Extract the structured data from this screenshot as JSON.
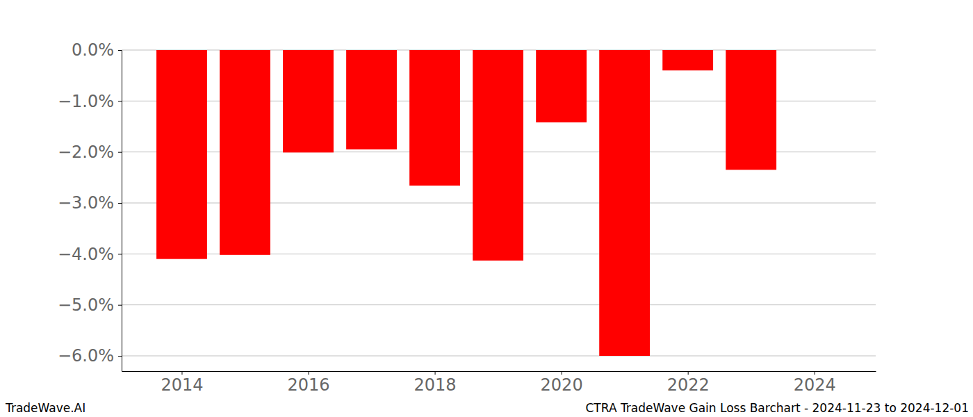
{
  "chart_data": {
    "type": "bar",
    "title": "CTRA TradeWave Gain Loss Barchart - 2024-11-23 to 2024-12-01",
    "annotations": [
      "TradeWave.AI"
    ],
    "x": [
      2014,
      2015,
      2016,
      2017,
      2018,
      2019,
      2020,
      2021,
      2022,
      2023
    ],
    "values": [
      -4.1,
      -4.02,
      -2.01,
      -1.95,
      -2.66,
      -4.13,
      -1.42,
      -6.0,
      -0.4,
      -2.35
    ],
    "color": "#ff0000",
    "xlim": [
      2013.05,
      2024.97
    ],
    "xticks": [
      2014,
      2016,
      2018,
      2020,
      2022,
      2024
    ],
    "ylim": [
      -6.3,
      0
    ],
    "yticks": [
      {
        "value": 0,
        "label": "0.0%"
      },
      {
        "value": -1,
        "label": "−1.0%"
      },
      {
        "value": -2,
        "label": "−2.0%"
      },
      {
        "value": -3,
        "label": "−3.0%"
      },
      {
        "value": -4,
        "label": "−4.0%"
      },
      {
        "value": -5,
        "label": "−5.0%"
      },
      {
        "value": -6,
        "label": "−6.0%"
      }
    ],
    "grid": true
  }
}
